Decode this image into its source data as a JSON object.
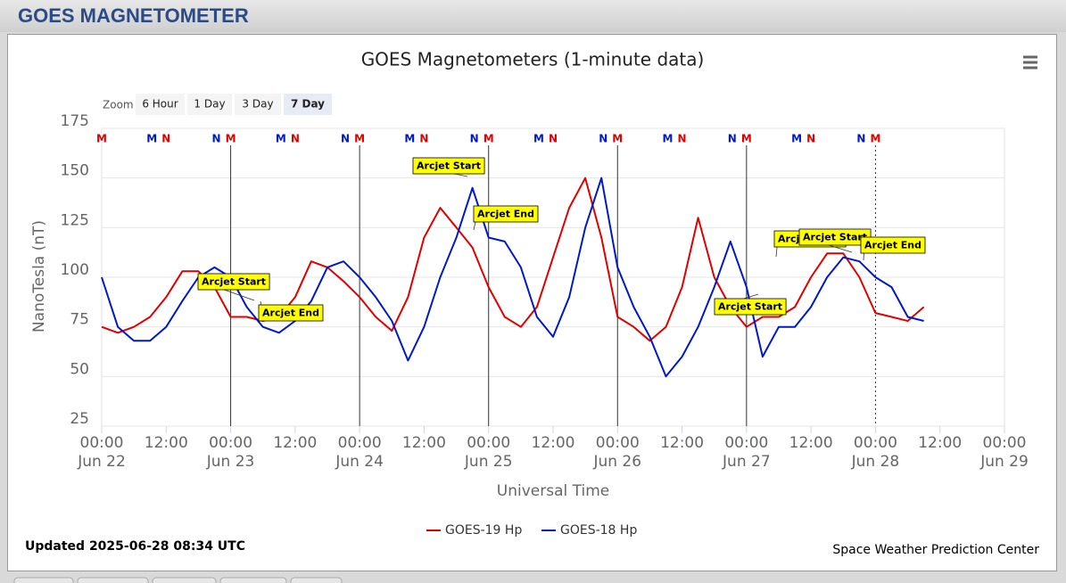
{
  "header": {
    "title": "GOES MAGNETOMETER"
  },
  "zoom": {
    "label": "Zoom",
    "buttons": [
      "6 Hour",
      "1 Day",
      "3 Day",
      "7 Day"
    ],
    "selected": "7 Day"
  },
  "chart_data": {
    "type": "line",
    "title": "GOES Magnetometers (1-minute data)",
    "y_label": "NanoTesla (nT)",
    "x_label": "Universal Time",
    "ylim": [
      25,
      175
    ],
    "yticks": [
      25,
      50,
      75,
      100,
      125,
      150,
      175
    ],
    "grid": true,
    "xlim": [
      "Jun 22 00:00",
      "Jun 29 00:00"
    ],
    "xticks": [
      {
        "value": "Jun 22 00:00",
        "label": "00:00",
        "date": "Jun 22"
      },
      {
        "value": "Jun 22 12:00",
        "label": "12:00"
      },
      {
        "value": "Jun 23 00:00",
        "label": "00:00",
        "date": "Jun 23"
      },
      {
        "value": "Jun 23 12:00",
        "label": "12:00"
      },
      {
        "value": "Jun 24 00:00",
        "label": "00:00",
        "date": "Jun 24"
      },
      {
        "value": "Jun 24 12:00",
        "label": "12:00"
      },
      {
        "value": "Jun 25 00:00",
        "label": "00:00",
        "date": "Jun 25"
      },
      {
        "value": "Jun 25 12:00",
        "label": "12:00"
      },
      {
        "value": "Jun 26 00:00",
        "label": "00:00",
        "date": "Jun 26"
      },
      {
        "value": "Jun 26 12:00",
        "label": "12:00"
      },
      {
        "value": "Jun 27 00:00",
        "label": "00:00",
        "date": "Jun 27"
      },
      {
        "value": "Jun 27 12:00",
        "label": "12:00"
      },
      {
        "value": "Jun 28 00:00",
        "label": "00:00",
        "date": "Jun 28"
      },
      {
        "value": "Jun 28 12:00",
        "label": "12:00"
      },
      {
        "value": "Jun 29 00:00",
        "label": "00:00",
        "date": "Jun 29"
      }
    ],
    "x": [
      "Jun 22 00:00",
      "Jun 22 03:00",
      "Jun 22 06:00",
      "Jun 22 09:00",
      "Jun 22 12:00",
      "Jun 22 15:00",
      "Jun 22 18:00",
      "Jun 22 21:00",
      "Jun 23 00:00",
      "Jun 23 03:00",
      "Jun 23 06:00",
      "Jun 23 09:00",
      "Jun 23 12:00",
      "Jun 23 15:00",
      "Jun 23 18:00",
      "Jun 23 21:00",
      "Jun 24 00:00",
      "Jun 24 03:00",
      "Jun 24 06:00",
      "Jun 24 09:00",
      "Jun 24 12:00",
      "Jun 24 15:00",
      "Jun 24 18:00",
      "Jun 24 21:00",
      "Jun 25 00:00",
      "Jun 25 03:00",
      "Jun 25 06:00",
      "Jun 25 09:00",
      "Jun 25 12:00",
      "Jun 25 15:00",
      "Jun 25 18:00",
      "Jun 25 21:00",
      "Jun 26 00:00",
      "Jun 26 03:00",
      "Jun 26 06:00",
      "Jun 26 09:00",
      "Jun 26 12:00",
      "Jun 26 15:00",
      "Jun 26 18:00",
      "Jun 26 21:00",
      "Jun 27 00:00",
      "Jun 27 03:00",
      "Jun 27 06:00",
      "Jun 27 09:00",
      "Jun 27 12:00",
      "Jun 27 15:00",
      "Jun 27 18:00",
      "Jun 27 21:00",
      "Jun 28 00:00",
      "Jun 28 03:00",
      "Jun 28 06:00",
      "Jun 28 09:00"
    ],
    "series": [
      {
        "name": "GOES-19 Hp",
        "color": "#e00000",
        "values": [
          75,
          72,
          75,
          80,
          90,
          103,
          103,
          95,
          80,
          80,
          78,
          80,
          90,
          108,
          105,
          98,
          90,
          80,
          73,
          90,
          120,
          135,
          125,
          115,
          95,
          80,
          75,
          85,
          110,
          135,
          150,
          120,
          80,
          75,
          68,
          75,
          95,
          130,
          100,
          85,
          75,
          80,
          80,
          85,
          100,
          112,
          112,
          100,
          82,
          80,
          78,
          85
        ]
      },
      {
        "name": "GOES-18 Hp",
        "color": "#0018cc",
        "values": [
          100,
          75,
          68,
          68,
          75,
          88,
          100,
          105,
          100,
          85,
          75,
          72,
          78,
          88,
          105,
          108,
          100,
          90,
          78,
          58,
          75,
          100,
          120,
          145,
          120,
          118,
          105,
          80,
          70,
          90,
          125,
          150,
          105,
          85,
          70,
          50,
          60,
          75,
          95,
          118,
          95,
          60,
          75,
          75,
          85,
          100,
          110,
          108,
          100,
          95,
          80,
          78
        ]
      }
    ],
    "local_markers": [
      {
        "color": "#e00000",
        "labels": [
          "M",
          "N",
          "M",
          "N",
          "M",
          "N",
          "M",
          "N",
          "M",
          "N",
          "M",
          "N",
          "M"
        ],
        "x": [
          "Jun 22 00:00",
          "Jun 22 12:00",
          "Jun 23 00:00",
          "Jun 23 12:00",
          "Jun 24 00:00",
          "Jun 24 12:00",
          "Jun 25 00:00",
          "Jun 25 12:00",
          "Jun 26 00:00",
          "Jun 26 12:00",
          "Jun 27 00:00",
          "Jun 27 12:00",
          "Jun 28 00:00"
        ]
      },
      {
        "color": "#0018cc",
        "labels": [
          "M",
          "N",
          "M",
          "N",
          "M",
          "N",
          "M",
          "N",
          "M",
          "N",
          "M",
          "N"
        ],
        "x": [
          "Jun 22 09:20",
          "Jun 22 21:20",
          "Jun 23 09:20",
          "Jun 23 21:20",
          "Jun 24 09:20",
          "Jun 24 21:20",
          "Jun 25 09:20",
          "Jun 25 21:20",
          "Jun 26 09:20",
          "Jun 26 21:20",
          "Jun 27 09:20",
          "Jun 27 21:20"
        ]
      }
    ],
    "annotations": [
      {
        "text": "Arcjet Start",
        "x": "Jun 23 04:30"
      },
      {
        "text": "Arcjet End",
        "x": "Jun 23 05:30"
      },
      {
        "text": "Arcjet Start",
        "x": "Jun 24 20:00"
      },
      {
        "text": "Arcjet End",
        "x": "Jun 24 21:00"
      },
      {
        "text": "Arcjet Start",
        "x": "Jun 27 02:20"
      },
      {
        "text": "Arcjet Start",
        "x": "Jun 27 05:30"
      },
      {
        "text": "Arcjet Start",
        "x": "Jun 27 20:00"
      },
      {
        "text": "Arcjet End",
        "x": "Jun 27 22:00"
      }
    ]
  },
  "footer": {
    "updated": "Updated 2025-06-28 08:34 UTC",
    "credit": "Space Weather Prediction Center"
  }
}
